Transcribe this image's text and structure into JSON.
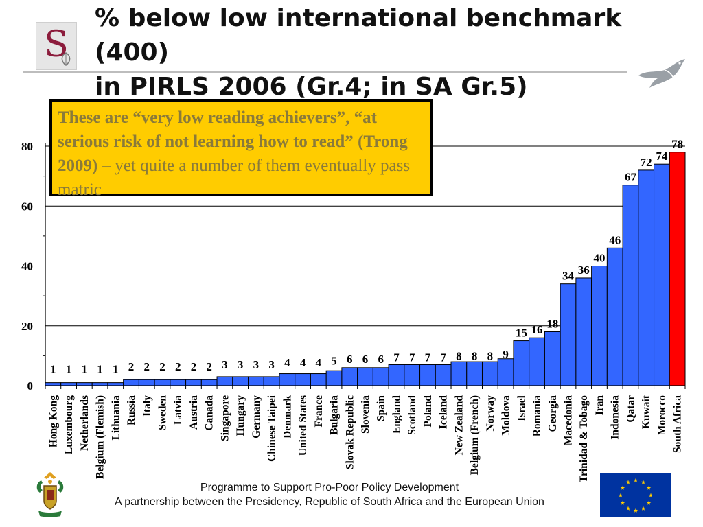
{
  "slide": {
    "title_line1": "% below low international benchmark (400)",
    "title_line2": "in PIRLS 2006 (Gr.4; in SA Gr.5)",
    "logo_letter": "S"
  },
  "callout": {
    "bold_text": "These are “very low reading achievers”, “at serious risk of not learning how to read” (Trong 2009) –",
    "normal_text": " yet quite a number of them eventually pass matric"
  },
  "footer": {
    "line1": "Programme to Support Pro-Poor Policy Development",
    "line2": "A partnership between the Presidency, Republic of South Africa and the European Union"
  },
  "chart_data": {
    "type": "bar",
    "title": "% below low international benchmark (400) in PIRLS 2006 (Gr.4; in SA Gr.5)",
    "xlabel": "",
    "ylabel": "",
    "ylim": [
      0,
      80
    ],
    "yticks": [
      0,
      20,
      40,
      60,
      80
    ],
    "grid": true,
    "colors": {
      "bar": "#3366ff",
      "highlight": "#ff0000"
    },
    "highlight_category": "South Africa",
    "categories": [
      "Hong Kong",
      "Luxembourg",
      "Netherlands",
      "Belgium (Flemish)",
      "Lithuania",
      "Russia",
      "Italy",
      "Sweden",
      "Latvia",
      "Austria",
      "Canada",
      "Singapore",
      "Hungary",
      "Germany",
      "Chinese Taipei",
      "Denmark",
      "United States",
      "France",
      "Bulgaria",
      "Slovak Republic",
      "Slovenia",
      "Spain",
      "England",
      "Scotland",
      "Poland",
      "Iceland",
      "New Zealand",
      "Belgium (French)",
      "Norway",
      "Moldova",
      "Israel",
      "Romania",
      "Georgia",
      "Macedonia",
      "Trinidad & Tobago",
      "Iran",
      "Indonesia",
      "Qatar",
      "Kuwait",
      "Morocco",
      "South Africa"
    ],
    "values": [
      1,
      1,
      1,
      1,
      1,
      2,
      2,
      2,
      2,
      2,
      2,
      3,
      3,
      3,
      3,
      4,
      4,
      4,
      5,
      6,
      6,
      6,
      7,
      7,
      7,
      7,
      8,
      8,
      8,
      9,
      15,
      16,
      18,
      34,
      36,
      40,
      46,
      67,
      72,
      74,
      78
    ]
  }
}
